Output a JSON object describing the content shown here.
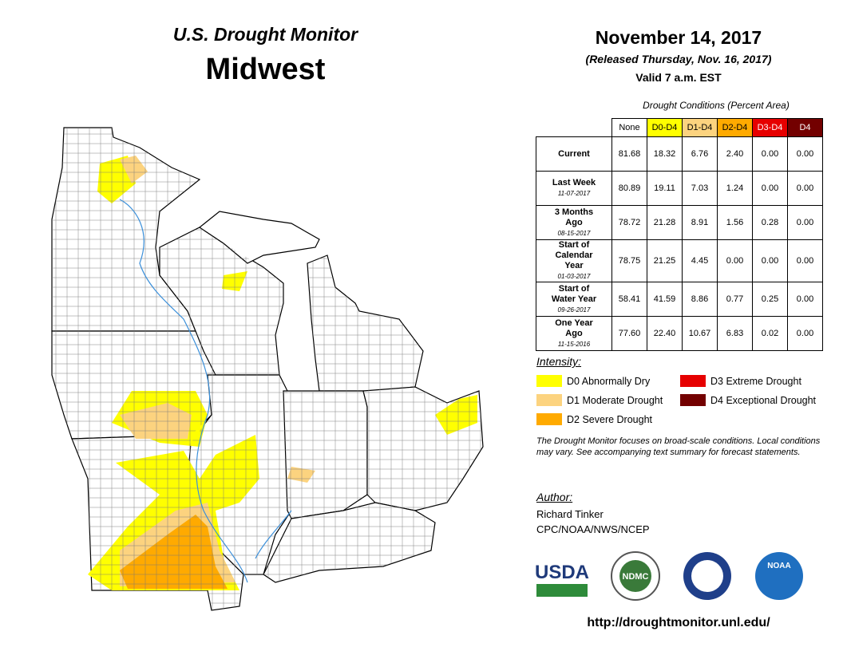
{
  "header": {
    "title": "U.S. Drought Monitor",
    "region": "Midwest",
    "date": "November 14, 2017",
    "released": "(Released Thursday, Nov. 16, 2017)",
    "valid": "Valid 7 a.m. EST"
  },
  "table": {
    "caption": "Drought Conditions (Percent Area)",
    "columns": [
      "None",
      "D0-D4",
      "D1-D4",
      "D2-D4",
      "D3-D4",
      "D4"
    ],
    "rows": [
      {
        "label": "Current",
        "values": [
          "81.68",
          "18.32",
          "6.76",
          "2.40",
          "0.00",
          "0.00"
        ]
      },
      {
        "label": "Last Week",
        "date": "11-07-2017",
        "values": [
          "80.89",
          "19.11",
          "7.03",
          "1.24",
          "0.00",
          "0.00"
        ]
      },
      {
        "label": "3 Months Ago",
        "date": "08-15-2017",
        "values": [
          "78.72",
          "21.28",
          "8.91",
          "1.56",
          "0.28",
          "0.00"
        ]
      },
      {
        "label": "Start of Calendar Year",
        "date": "01-03-2017",
        "values": [
          "78.75",
          "21.25",
          "4.45",
          "0.00",
          "0.00",
          "0.00"
        ]
      },
      {
        "label": "Start of Water Year",
        "date": "09-26-2017",
        "values": [
          "58.41",
          "41.59",
          "8.86",
          "0.77",
          "0.25",
          "0.00"
        ]
      },
      {
        "label": "One Year Ago",
        "date": "11-15-2016",
        "values": [
          "77.60",
          "22.40",
          "10.67",
          "6.83",
          "0.02",
          "0.00"
        ]
      }
    ]
  },
  "legend": {
    "title": "Intensity:",
    "items": [
      {
        "label": "D0 Abnormally Dry",
        "color": "#ffff00"
      },
      {
        "label": "D1 Moderate Drought",
        "color": "#fcd37f"
      },
      {
        "label": "D2 Severe Drought",
        "color": "#ffaa00"
      },
      {
        "label": "D3 Extreme Drought",
        "color": "#e60000"
      },
      {
        "label": "D4 Exceptional Drought",
        "color": "#730000"
      }
    ]
  },
  "note": "The Drought Monitor focuses on broad-scale conditions. Local conditions may vary. See accompanying text summary for forecast statements.",
  "author": {
    "title": "Author:",
    "name": "Richard Tinker",
    "org": "CPC/NOAA/NWS/NCEP"
  },
  "logos": [
    "USDA",
    "NDMC",
    "NOAA"
  ],
  "url": "http://droughtmonitor.unl.edu/"
}
